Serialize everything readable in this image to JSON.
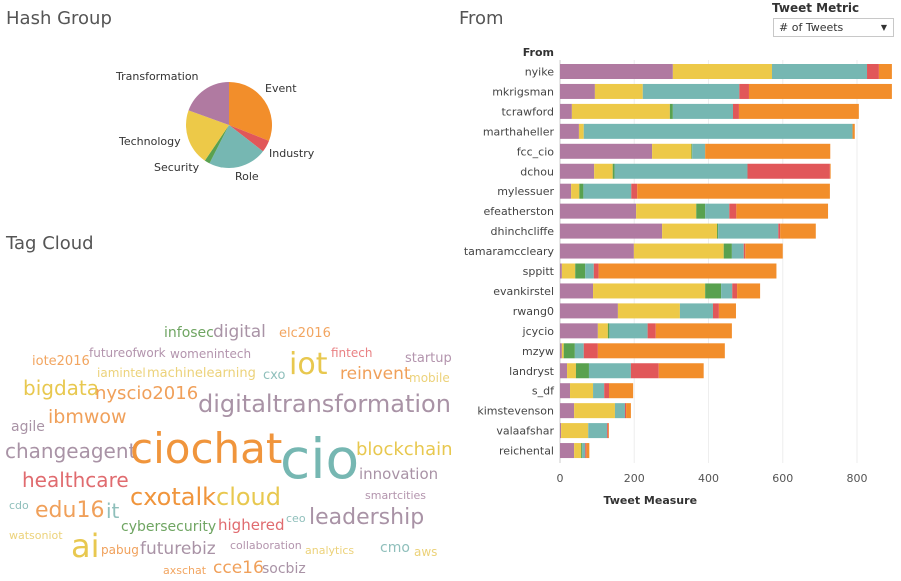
{
  "hash_group": {
    "title": "Hash Group"
  },
  "from_panel": {
    "title": "From"
  },
  "tag_cloud": {
    "title": "Tag Cloud",
    "words": [
      {
        "text": "infosec",
        "color": "#6fa562"
      },
      {
        "text": "digital",
        "color": "#a993a6"
      },
      {
        "text": "elc2016",
        "color": "#f2a560"
      },
      {
        "text": "futureofwork",
        "color": "#b394ad"
      },
      {
        "text": "womenintech",
        "color": "#b394ad"
      },
      {
        "text": "fintech",
        "color": "#e98083"
      },
      {
        "text": "iote2016",
        "color": "#f2a560"
      },
      {
        "text": "iot",
        "color": "#e8c84f"
      },
      {
        "text": "startup",
        "color": "#b394ad"
      },
      {
        "text": "iamintel",
        "color": "#ecd27a"
      },
      {
        "text": "machinelearning",
        "color": "#ecd27a"
      },
      {
        "text": "cxo",
        "color": "#8fbfbb"
      },
      {
        "text": "reinvent",
        "color": "#f0a05a"
      },
      {
        "text": "mobile",
        "color": "#ecd27a"
      },
      {
        "text": "bigdata",
        "color": "#e8c84f"
      },
      {
        "text": "nyscio2016",
        "color": "#f0a05a"
      },
      {
        "text": "digitaltransformation",
        "color": "#a993a6"
      },
      {
        "text": "agile",
        "color": "#a993a6"
      },
      {
        "text": "ibmwow",
        "color": "#f0a05a"
      },
      {
        "text": "changeagent",
        "color": "#a993a6"
      },
      {
        "text": "ciochat",
        "color": "#f0953c"
      },
      {
        "text": "cio",
        "color": "#76b7b2"
      },
      {
        "text": "blockchain",
        "color": "#e8c84f"
      },
      {
        "text": "healthcare",
        "color": "#e06b6f"
      },
      {
        "text": "innovation",
        "color": "#a993a6"
      },
      {
        "text": "cxotalk",
        "color": "#f0953c"
      },
      {
        "text": "cloud",
        "color": "#e8c84f"
      },
      {
        "text": "smartcities",
        "color": "#b394ad"
      },
      {
        "text": "cdo",
        "color": "#8fbfbb"
      },
      {
        "text": "edu16",
        "color": "#f0a05a"
      },
      {
        "text": "it",
        "color": "#8fbfbb"
      },
      {
        "text": "ceo",
        "color": "#8fbfbb"
      },
      {
        "text": "leadership",
        "color": "#a993a6"
      },
      {
        "text": "cybersecurity",
        "color": "#6fa562"
      },
      {
        "text": "highered",
        "color": "#e06b6f"
      },
      {
        "text": "watsoniot",
        "color": "#ecd27a"
      },
      {
        "text": "ai",
        "color": "#e8c84f"
      },
      {
        "text": "pabug",
        "color": "#f0a05a"
      },
      {
        "text": "futurebiz",
        "color": "#a993a6"
      },
      {
        "text": "collaboration",
        "color": "#b394ad"
      },
      {
        "text": "analytics",
        "color": "#ecd27a"
      },
      {
        "text": "cmo",
        "color": "#8fbfbb"
      },
      {
        "text": "aws",
        "color": "#ecd27a"
      },
      {
        "text": "axschat",
        "color": "#f2a560"
      },
      {
        "text": "cce16",
        "color": "#f0a05a"
      },
      {
        "text": "socbiz",
        "color": "#a993a6"
      }
    ]
  },
  "controls": {
    "metric_label": "Tweet Metric",
    "metric_selected": "# of Tweets",
    "dropdown_icon": "caret-down-icon"
  },
  "chart_data": [
    {
      "type": "pie",
      "title": "Hash Group",
      "slices": [
        {
          "label": "Event",
          "value": 31,
          "color": "#f28e2b"
        },
        {
          "label": "Industry",
          "value": 4.5,
          "color": "#e15759"
        },
        {
          "label": "Role",
          "value": 22,
          "color": "#76b7b2"
        },
        {
          "label": "Security",
          "value": 2,
          "color": "#59a14f"
        },
        {
          "label": "Technology",
          "value": 21,
          "color": "#edc948"
        },
        {
          "label": "Transformation",
          "value": 19.5,
          "color": "#b07aa1"
        }
      ]
    },
    {
      "type": "bar",
      "orientation": "horizontal",
      "stacked": true,
      "title": "From",
      "ylabel": "From",
      "xlabel": "Tweet Measure",
      "xlim": [
        0,
        900
      ],
      "xticks": [
        0,
        200,
        400,
        600,
        800
      ],
      "grid": true,
      "categories": [
        "nyike",
        "mkrigsman",
        "tcrawford",
        "marthaheller",
        "fcc_cio",
        "dchou",
        "mylessuer",
        "efeatherston",
        "dhinchcliffe",
        "tamaramccleary",
        "sppitt",
        "evankirstel",
        "rwang0",
        "jcycio",
        "mzyw",
        "landryst",
        "s_df",
        "kimstevenson",
        "valaafshar",
        "reichental"
      ],
      "series": [
        {
          "group": "Transformation",
          "color": "#b07aa1",
          "values": [
            304,
            94,
            32,
            51,
            248,
            92,
            30,
            205,
            275,
            199,
            5,
            89,
            156,
            102,
            5,
            19,
            27,
            38,
            3,
            38
          ]
        },
        {
          "group": "Technology",
          "color": "#edc948",
          "values": [
            267,
            129,
            264,
            13,
            106,
            50,
            22,
            162,
            148,
            242,
            36,
            302,
            167,
            27,
            5,
            24,
            62,
            110,
            73,
            19
          ]
        },
        {
          "group": "Security",
          "color": "#59a14f",
          "values": [
            0,
            0,
            8,
            0,
            2,
            5,
            11,
            24,
            3,
            22,
            27,
            43,
            0,
            4,
            30,
            35,
            0,
            0,
            0,
            3
          ]
        },
        {
          "group": "Role",
          "color": "#76b7b2",
          "values": [
            256,
            260,
            162,
            724,
            35,
            358,
            129,
            65,
            162,
            32,
            23,
            30,
            89,
            103,
            24,
            113,
            30,
            27,
            51,
            8
          ]
        },
        {
          "group": "Industry",
          "color": "#e15759",
          "values": [
            32,
            26,
            16,
            0,
            0,
            222,
            16,
            19,
            5,
            4,
            13,
            13,
            16,
            22,
            38,
            75,
            13,
            3,
            3,
            3
          ]
        },
        {
          "group": "Event",
          "color": "#f28e2b",
          "values": [
            35,
            385,
            323,
            6,
            337,
            2,
            519,
            247,
            96,
            101,
            479,
            62,
            46,
            205,
            342,
            121,
            65,
            13,
            2,
            8
          ]
        }
      ]
    }
  ]
}
